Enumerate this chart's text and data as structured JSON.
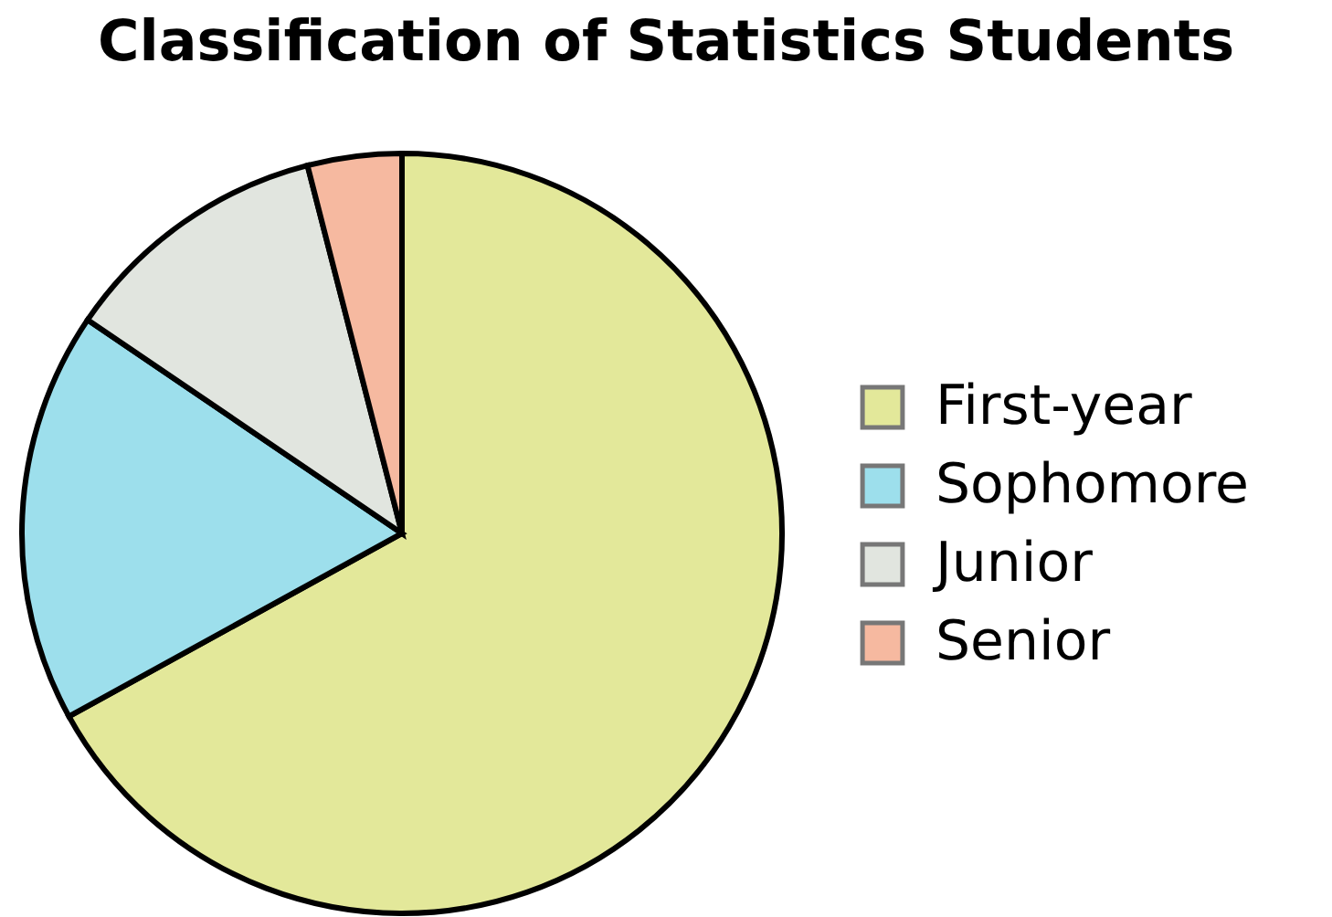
{
  "chart_data": {
    "type": "pie",
    "title": "Classification of Statistics Students",
    "categories": [
      "First-year",
      "Sophomore",
      "Junior",
      "Senior"
    ],
    "values": [
      67,
      17.5,
      11.5,
      4
    ],
    "colors": [
      "#e3e89a",
      "#9ddfec",
      "#e1e5df",
      "#f6b9a0"
    ],
    "legend": "right"
  }
}
